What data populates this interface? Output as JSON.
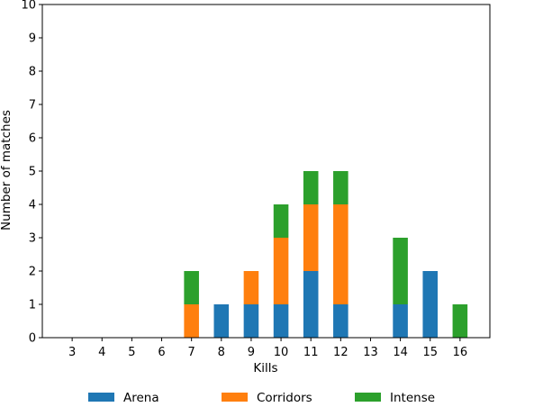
{
  "chart_data": {
    "type": "bar",
    "stacked": true,
    "categories": [
      "3",
      "4",
      "5",
      "6",
      "7",
      "8",
      "9",
      "10",
      "11",
      "12",
      "13",
      "14",
      "15",
      "16"
    ],
    "series": [
      {
        "name": "Arena",
        "color": "#1f77b4",
        "values": [
          0,
          0,
          0,
          0,
          0,
          1,
          1,
          1,
          2,
          1,
          0,
          1,
          2,
          0
        ]
      },
      {
        "name": "Corridors",
        "color": "#ff7f0e",
        "values": [
          0,
          0,
          0,
          0,
          1,
          0,
          1,
          2,
          2,
          3,
          0,
          0,
          0,
          0
        ]
      },
      {
        "name": "Intense",
        "color": "#2ca02c",
        "values": [
          0,
          0,
          0,
          0,
          1,
          0,
          0,
          1,
          1,
          1,
          0,
          2,
          0,
          1
        ]
      }
    ],
    "xlabel": "Kills",
    "ylabel": "Number of matches",
    "ylim": [
      0,
      10
    ],
    "yticks": [
      "0",
      "1",
      "2",
      "3",
      "4",
      "5",
      "6",
      "7",
      "8",
      "9",
      "10"
    ],
    "grid": false,
    "legend_position": "bottom"
  }
}
